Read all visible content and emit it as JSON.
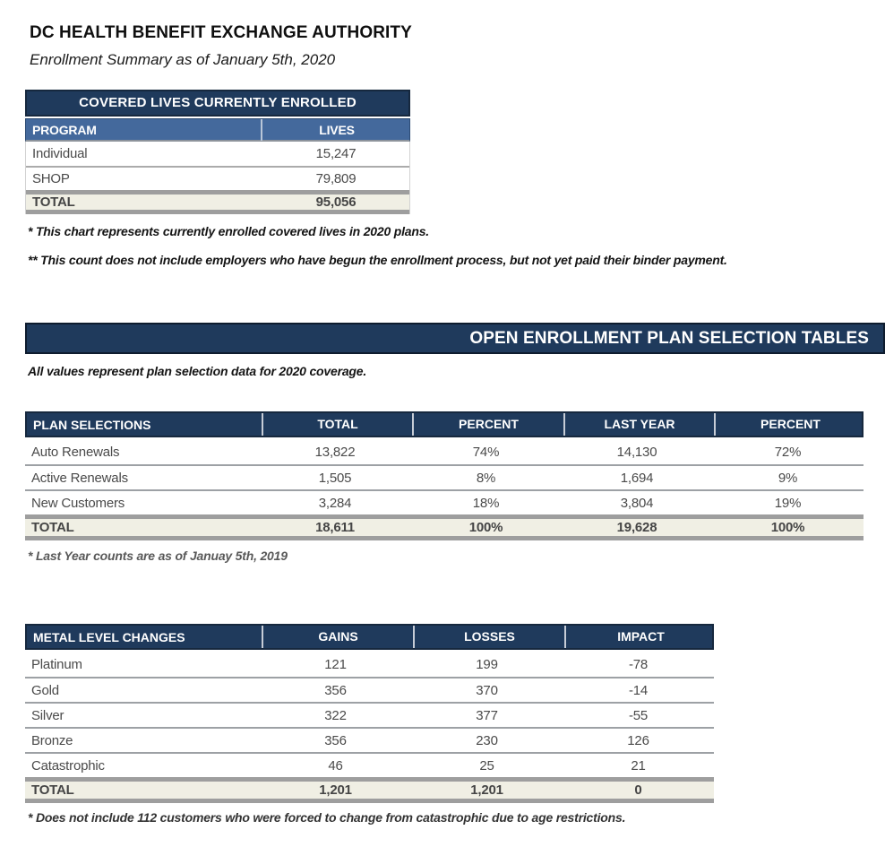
{
  "page": {
    "title": "DC HEALTH BENEFIT EXCHANGE AUTHORITY",
    "subtitle": "Enrollment Summary as of January 5th, 2020"
  },
  "colors": {
    "navy": "#1f3a5c",
    "navy_border": "#16283e",
    "steel_blue_header": "#44699c",
    "total_row_bg": "#f0efe4",
    "thick_band_gray": "#9e9e9e",
    "body_text": "#4a4a4a"
  },
  "covered_lives_table": {
    "caption": "COVERED LIVES CURRENTLY ENROLLED",
    "columns": [
      "PROGRAM",
      "LIVES"
    ],
    "rows": [
      {
        "program": "Individual",
        "lives": "15,247"
      },
      {
        "program": "SHOP",
        "lives": "79,809"
      }
    ],
    "total": {
      "label": "TOTAL",
      "lives": "95,056"
    },
    "footnote_1": "* This chart represents currently enrolled covered lives in 2020 plans.",
    "footnote_2": "** This count does not include employers who have begun the enrollment process, but not yet paid their binder payment."
  },
  "section": {
    "header": "OPEN ENROLLMENT PLAN SELECTION TABLES",
    "note": "All values represent plan selection data for 2020 coverage."
  },
  "plan_selections_table": {
    "columns": [
      "PLAN SELECTIONS",
      "TOTAL",
      "PERCENT",
      "LAST YEAR",
      "PERCENT"
    ],
    "rows": [
      {
        "label": "Auto Renewals",
        "total": "13,822",
        "percent": "74%",
        "last_year": "14,130",
        "last_year_percent": "72%"
      },
      {
        "label": "Active Renewals",
        "total": "1,505",
        "percent": "8%",
        "last_year": "1,694",
        "last_year_percent": "9%"
      },
      {
        "label": "New Customers",
        "total": "3,284",
        "percent": "18%",
        "last_year": "3,804",
        "last_year_percent": "19%"
      }
    ],
    "total": {
      "label": "TOTAL",
      "total": "18,611",
      "percent": "100%",
      "last_year": "19,628",
      "last_year_percent": "100%"
    },
    "footnote": "* Last Year counts are as of Januay 5th, 2019"
  },
  "metal_level_table": {
    "columns": [
      "METAL LEVEL CHANGES",
      "GAINS",
      "LOSSES",
      "IMPACT"
    ],
    "rows": [
      {
        "label": "Platinum",
        "gains": "121",
        "losses": "199",
        "impact": "-78"
      },
      {
        "label": "Gold",
        "gains": "356",
        "losses": "370",
        "impact": "-14"
      },
      {
        "label": "Silver",
        "gains": "322",
        "losses": "377",
        "impact": "-55"
      },
      {
        "label": "Bronze",
        "gains": "356",
        "losses": "230",
        "impact": "126"
      },
      {
        "label": "Catastrophic",
        "gains": "46",
        "losses": "25",
        "impact": "21"
      }
    ],
    "total": {
      "label": "TOTAL",
      "gains": "1,201",
      "losses": "1,201",
      "impact": "0"
    },
    "footnote": "* Does not include 112 customers who were forced to change from catastrophic due to age restrictions."
  }
}
